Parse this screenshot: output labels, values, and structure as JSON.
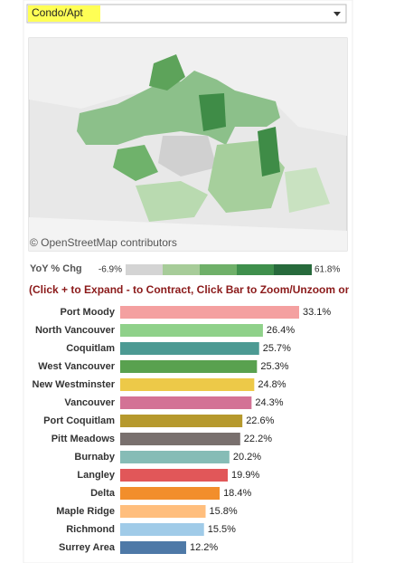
{
  "dropdown": {
    "value": "Condo/Apt"
  },
  "map": {
    "attribution": "© OpenStreetMap contributors"
  },
  "color_legend": {
    "title": "YoY % Chg",
    "min": {
      "value": -6.9,
      "label": "-6.9%"
    },
    "max": {
      "value": 61.8,
      "label": "61.8%"
    }
  },
  "instruction": "(Click + to Expand - to Contract, Click Bar to Zoom/Unzoom on Map)",
  "chart_data": {
    "type": "hbar",
    "categories": [
      "Port Moody",
      "North Vancouver",
      "Coquitlam",
      "West Vancouver",
      "New Westminster",
      "Vancouver",
      "Port Coquitlam",
      "Pitt Meadows",
      "Burnaby",
      "Langley",
      "Delta",
      "Maple Ridge",
      "Richmond",
      "Surrey Area"
    ],
    "values": [
      33.1,
      26.4,
      25.7,
      25.3,
      24.8,
      24.3,
      22.6,
      22.2,
      20.2,
      19.9,
      18.4,
      15.8,
      15.5,
      12.2
    ],
    "value_labels": [
      "33.1%",
      "26.4%",
      "25.7%",
      "25.3%",
      "24.8%",
      "24.3%",
      "22.6%",
      "22.2%",
      "20.2%",
      "19.9%",
      "18.4%",
      "15.8%",
      "15.5%",
      "12.2%"
    ],
    "colors": [
      "#f4a0a0",
      "#8fd18a",
      "#4c9a93",
      "#59a14f",
      "#edc948",
      "#d37295",
      "#b6992d",
      "#79706e",
      "#86bcb6",
      "#e15759",
      "#f28e2b",
      "#ffbe7d",
      "#a0cbe8",
      "#4e79a7"
    ]
  }
}
